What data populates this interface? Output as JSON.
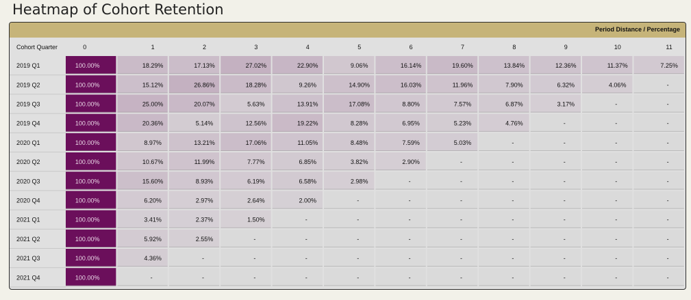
{
  "title": "Heatmap of Cohort Retention",
  "chart_data": {
    "type": "heatmap",
    "title": "Heatmap of Cohort Retention",
    "column_axis_label": "Period Distance / Percentage",
    "row_header_label": "Cohort Quarter",
    "columns": [
      "0",
      "1",
      "2",
      "3",
      "4",
      "5",
      "6",
      "7",
      "8",
      "9",
      "10",
      "11"
    ],
    "rows": [
      {
        "cohort": "2019 Q1",
        "values": [
          "100.00%",
          "18.29%",
          "17.13%",
          "27.02%",
          "22.90%",
          "9.06%",
          "16.14%",
          "19.60%",
          "13.84%",
          "12.36%",
          "11.37%",
          "7.25%"
        ]
      },
      {
        "cohort": "2019 Q2",
        "values": [
          "100.00%",
          "15.12%",
          "26.86%",
          "18.28%",
          "9.26%",
          "14.90%",
          "16.03%",
          "11.96%",
          "7.90%",
          "6.32%",
          "4.06%",
          "-"
        ]
      },
      {
        "cohort": "2019 Q3",
        "values": [
          "100.00%",
          "25.00%",
          "20.07%",
          "5.63%",
          "13.91%",
          "17.08%",
          "8.80%",
          "7.57%",
          "6.87%",
          "3.17%",
          "-",
          "-"
        ]
      },
      {
        "cohort": "2019 Q4",
        "values": [
          "100.00%",
          "20.36%",
          "5.14%",
          "12.56%",
          "19.22%",
          "8.28%",
          "6.95%",
          "5.23%",
          "4.76%",
          "-",
          "-",
          "-"
        ]
      },
      {
        "cohort": "2020 Q1",
        "values": [
          "100.00%",
          "8.97%",
          "13.21%",
          "17.06%",
          "11.05%",
          "8.48%",
          "7.59%",
          "5.03%",
          "-",
          "-",
          "-",
          "-"
        ]
      },
      {
        "cohort": "2020 Q2",
        "values": [
          "100.00%",
          "10.67%",
          "11.99%",
          "7.77%",
          "6.85%",
          "3.82%",
          "2.90%",
          "-",
          "-",
          "-",
          "-",
          "-"
        ]
      },
      {
        "cohort": "2020 Q3",
        "values": [
          "100.00%",
          "15.60%",
          "8.93%",
          "6.19%",
          "6.58%",
          "2.98%",
          "-",
          "-",
          "-",
          "-",
          "-",
          "-"
        ]
      },
      {
        "cohort": "2020 Q4",
        "values": [
          "100.00%",
          "6.20%",
          "2.97%",
          "2.64%",
          "2.00%",
          "-",
          "-",
          "-",
          "-",
          "-",
          "-",
          "-"
        ]
      },
      {
        "cohort": "2021 Q1",
        "values": [
          "100.00%",
          "3.41%",
          "2.37%",
          "1.50%",
          "-",
          "-",
          "-",
          "-",
          "-",
          "-",
          "-",
          "-"
        ]
      },
      {
        "cohort": "2021 Q2",
        "values": [
          "100.00%",
          "5.92%",
          "2.55%",
          "-",
          "-",
          "-",
          "-",
          "-",
          "-",
          "-",
          "-",
          "-"
        ]
      },
      {
        "cohort": "2021 Q3",
        "values": [
          "100.00%",
          "4.36%",
          "-",
          "-",
          "-",
          "-",
          "-",
          "-",
          "-",
          "-",
          "-",
          "-"
        ]
      },
      {
        "cohort": "2021 Q4",
        "values": [
          "100.00%",
          "-",
          "-",
          "-",
          "-",
          "-",
          "-",
          "-",
          "-",
          "-",
          "-",
          "-"
        ]
      }
    ],
    "colors": {
      "high": "#6b0f5b",
      "low": "#d9d6d9",
      "empty": "#dadada",
      "header_band": "#c6b479"
    }
  }
}
